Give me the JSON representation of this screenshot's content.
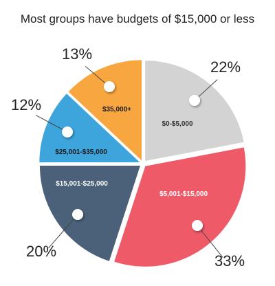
{
  "chart_data": {
    "type": "pie",
    "title": "Most groups have budgets of $15,000 or less",
    "slices": [
      {
        "label": "$0-$5,000",
        "value": 22,
        "display": "22%",
        "color": "#d3d3d3",
        "label_color": "#333333"
      },
      {
        "label": "$5,001-$15,000",
        "value": 33,
        "display": "33%",
        "color": "#ef5a68",
        "label_color": "#ffffff"
      },
      {
        "label": "$15,001-$25,000",
        "value": 20,
        "display": "20%",
        "color": "#4a6179",
        "label_color": "#ffffff"
      },
      {
        "label": "$25,001-$35,000",
        "value": 12,
        "display": "12%",
        "color": "#3ea4dc",
        "label_color": "#1a1a1a"
      },
      {
        "label": "$35,000+",
        "value": 13,
        "display": "13%",
        "color": "#f7a640",
        "label_color": "#1a1a1a"
      }
    ]
  }
}
